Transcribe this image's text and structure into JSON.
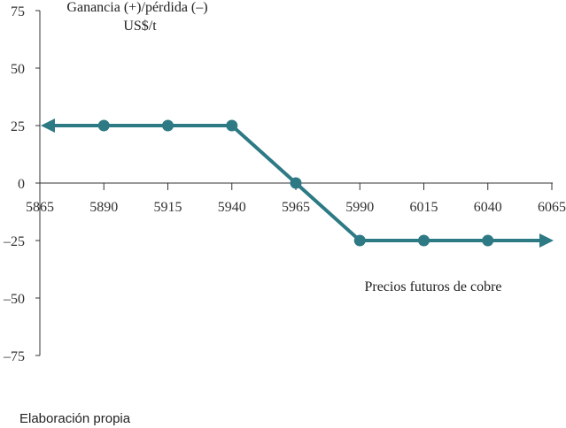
{
  "chart_data": {
    "type": "line",
    "title": "",
    "ylabel_line1": "Ganancia (+)/pérdida (–)",
    "ylabel_line2": "US$/t",
    "xlabel": "Precios futuros de cobre",
    "x_ticks": [
      "5865",
      "5890",
      "5915",
      "5940",
      "5965",
      "5990",
      "6015",
      "6040",
      "6065"
    ],
    "y_ticks": [
      "75",
      "50",
      "25",
      "0",
      "–25",
      "–50",
      "–75"
    ],
    "y_tick_values": [
      75,
      50,
      25,
      0,
      -25,
      -50,
      -75
    ],
    "xlim": [
      5865,
      6065
    ],
    "ylim": [
      -75,
      75
    ],
    "grid": false,
    "series": [
      {
        "x": [
          5865,
          5890,
          5915,
          5940,
          5965,
          5990,
          6015,
          6040,
          6065
        ],
        "y": [
          25,
          25,
          25,
          25,
          0,
          -25,
          -25,
          -25,
          -25
        ],
        "markers_x": [
          5890,
          5915,
          5940,
          5965,
          5990,
          6015,
          6040
        ],
        "arrow_left": true,
        "arrow_right": true
      }
    ],
    "line_color": "#2d7a85",
    "axis_color": "#333333"
  },
  "caption": "Elaboración propia"
}
